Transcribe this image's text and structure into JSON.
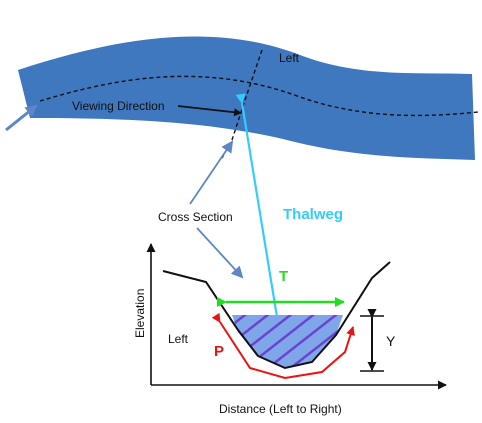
{
  "labels": {
    "left_top": "Left",
    "viewing_direction": "Viewing Direction",
    "cross_section": "Cross Section",
    "thalweg": "Thalweg",
    "top_width": "T",
    "depth": "Y",
    "wetted_perimeter": "P",
    "left_bank": "Left",
    "elevation_axis": "Elevation",
    "distance_axis": "Distance (Left to Right)"
  },
  "colors": {
    "river": "#3f78bf",
    "water": "#7ea6e8",
    "hatch": "#6a3fd0",
    "thalweg": "#33ccff",
    "top_width": "#22dd22",
    "perimeter": "#ee1111",
    "pointer": "#5d86c6"
  }
}
